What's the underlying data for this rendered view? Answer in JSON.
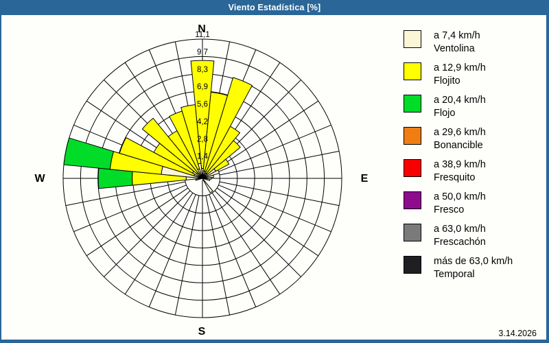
{
  "window": {
    "title": "Viento Estadística [%]"
  },
  "footer": {
    "date": "3.14.2026"
  },
  "colors": {
    "frame": "#2A6698",
    "cream": "#FBF7D6",
    "yellow": "#FFFF00",
    "green": "#00DC28",
    "orange": "#F07D13",
    "red": "#F80000",
    "purple": "#8E0B8E",
    "gray": "#7A7A7A",
    "dark": "#1F1F23",
    "grid": "#000000"
  },
  "legend": {
    "items": [
      {
        "color": "cream",
        "speed": "a 7,4 km/h",
        "name": "Ventolina"
      },
      {
        "color": "yellow",
        "speed": "a 12,9 km/h",
        "name": "Flojito"
      },
      {
        "color": "green",
        "speed": "a 20,4 km/h",
        "name": "Flojo"
      },
      {
        "color": "orange",
        "speed": "a 29,6 km/h",
        "name": "Bonancible"
      },
      {
        "color": "red",
        "speed": "a 38,9 km/h",
        "name": "Fresquito"
      },
      {
        "color": "purple",
        "speed": "a 50,0 km/h",
        "name": "Fresco"
      },
      {
        "color": "gray",
        "speed": "a 63,0 km/h",
        "name": "Frescachón"
      },
      {
        "color": "dark",
        "speed": "más de 63,0 km/h",
        "name": "Temporal"
      }
    ]
  },
  "chart_data": {
    "type": "wind_rose_stacked_bar",
    "title": "Viento Estadística [%]",
    "units": "%",
    "max_value": 11.1,
    "angular_bin_deg": 11.25,
    "grid": {
      "circles": 8,
      "radial_lines": 32,
      "grid_on": true
    },
    "ring_values": [
      1.4,
      2.8,
      4.2,
      5.6,
      6.9,
      8.3,
      9.7,
      11.1
    ],
    "ring_labels": [
      "1,4",
      "2,8",
      "4,2",
      "5,6",
      "6,9",
      "8,3",
      "9,7",
      "11,1"
    ],
    "compass": {
      "north": "N",
      "east": "E",
      "south": "S",
      "west": "W"
    },
    "bars": [
      {
        "dir_deg": 0.0,
        "segments": [
          {
            "color": "cream",
            "class": "Ventolina",
            "from": 0,
            "to": 0.8
          },
          {
            "color": "yellow",
            "class": "Flojito",
            "from": 0.8,
            "to": 9.4
          }
        ]
      },
      {
        "dir_deg": 11.25,
        "segments": [
          {
            "color": "cream",
            "class": "Ventolina",
            "from": 0,
            "to": 0.6
          },
          {
            "color": "yellow",
            "class": "Flojito",
            "from": 0.6,
            "to": 6.9
          }
        ]
      },
      {
        "dir_deg": 22.5,
        "segments": [
          {
            "color": "cream",
            "class": "Ventolina",
            "from": 0,
            "to": 0.6
          },
          {
            "color": "yellow",
            "class": "Flojito",
            "from": 0.6,
            "to": 8.4
          }
        ]
      },
      {
        "dir_deg": 33.75,
        "segments": [
          {
            "color": "cream",
            "class": "Ventolina",
            "from": 0,
            "to": 0.5
          },
          {
            "color": "yellow",
            "class": "Flojito",
            "from": 0.5,
            "to": 4.7
          }
        ]
      },
      {
        "dir_deg": 45.0,
        "segments": [
          {
            "color": "cream",
            "class": "Ventolina",
            "from": 0,
            "to": 0.5
          },
          {
            "color": "yellow",
            "class": "Flojito",
            "from": 0.5,
            "to": 3.9
          }
        ]
      },
      {
        "dir_deg": 56.25,
        "segments": [
          {
            "color": "cream",
            "class": "Ventolina",
            "from": 0,
            "to": 1.2
          },
          {
            "color": "yellow",
            "class": "Flojito",
            "from": 1.2,
            "to": 2.4
          }
        ]
      },
      {
        "dir_deg": 67.5,
        "segments": [
          {
            "color": "cream",
            "class": "Ventolina",
            "from": 0,
            "to": 1.4
          }
        ]
      },
      {
        "dir_deg": 78.75,
        "segments": [
          {
            "color": "cream",
            "class": "Ventolina",
            "from": 0,
            "to": 0.9
          }
        ]
      },
      {
        "dir_deg": 90.0,
        "segments": [
          {
            "color": "cream",
            "class": "Ventolina",
            "from": 0,
            "to": 0.7
          }
        ]
      },
      {
        "dir_deg": 101.25,
        "segments": [
          {
            "color": "cream",
            "class": "Ventolina",
            "from": 0,
            "to": 0.6
          }
        ]
      },
      {
        "dir_deg": 146.25,
        "segments": [
          {
            "color": "cream",
            "class": "Ventolina",
            "from": 0,
            "to": 1.3
          }
        ]
      },
      {
        "dir_deg": 258.75,
        "segments": [
          {
            "color": "green",
            "class": "Flojo",
            "from": 0,
            "to": 0.55
          }
        ]
      },
      {
        "dir_deg": 270.0,
        "segments": [
          {
            "color": "cream",
            "class": "Ventolina",
            "from": 0,
            "to": 1.3
          },
          {
            "color": "yellow",
            "class": "Flojito",
            "from": 1.3,
            "to": 5.6
          },
          {
            "color": "green",
            "class": "Flojo",
            "from": 5.6,
            "to": 8.3
          }
        ]
      },
      {
        "dir_deg": 281.25,
        "segments": [
          {
            "color": "cream",
            "class": "Ventolina",
            "from": 0,
            "to": 3.3
          },
          {
            "color": "yellow",
            "class": "Flojito",
            "from": 3.3,
            "to": 7.4
          },
          {
            "color": "green",
            "class": "Flojo",
            "from": 7.4,
            "to": 11.1
          }
        ]
      },
      {
        "dir_deg": 292.5,
        "segments": [
          {
            "color": "cream",
            "class": "Ventolina",
            "from": 0,
            "to": 0.7
          },
          {
            "color": "yellow",
            "class": "Flojito",
            "from": 0.7,
            "to": 6.9
          }
        ]
      },
      {
        "dir_deg": 303.75,
        "segments": [
          {
            "color": "cream",
            "class": "Ventolina",
            "from": 0,
            "to": 0.9
          },
          {
            "color": "yellow",
            "class": "Flojito",
            "from": 0.9,
            "to": 4.4
          }
        ]
      },
      {
        "dir_deg": 315.0,
        "segments": [
          {
            "color": "cream",
            "class": "Ventolina",
            "from": 0,
            "to": 0.6
          },
          {
            "color": "yellow",
            "class": "Flojito",
            "from": 0.6,
            "to": 6.2
          }
        ]
      },
      {
        "dir_deg": 326.25,
        "segments": [
          {
            "color": "cream",
            "class": "Ventolina",
            "from": 0,
            "to": 0.5
          },
          {
            "color": "yellow",
            "class": "Flojito",
            "from": 0.5,
            "to": 4.3
          }
        ]
      },
      {
        "dir_deg": 337.5,
        "segments": [
          {
            "color": "cream",
            "class": "Ventolina",
            "from": 0,
            "to": 0.8
          },
          {
            "color": "yellow",
            "class": "Flojito",
            "from": 0.8,
            "to": 5.6
          }
        ]
      },
      {
        "dir_deg": 348.75,
        "segments": [
          {
            "color": "cream",
            "class": "Ventolina",
            "from": 0,
            "to": 1.2
          },
          {
            "color": "yellow",
            "class": "Flojito",
            "from": 1.2,
            "to": 5.9
          }
        ]
      }
    ]
  }
}
